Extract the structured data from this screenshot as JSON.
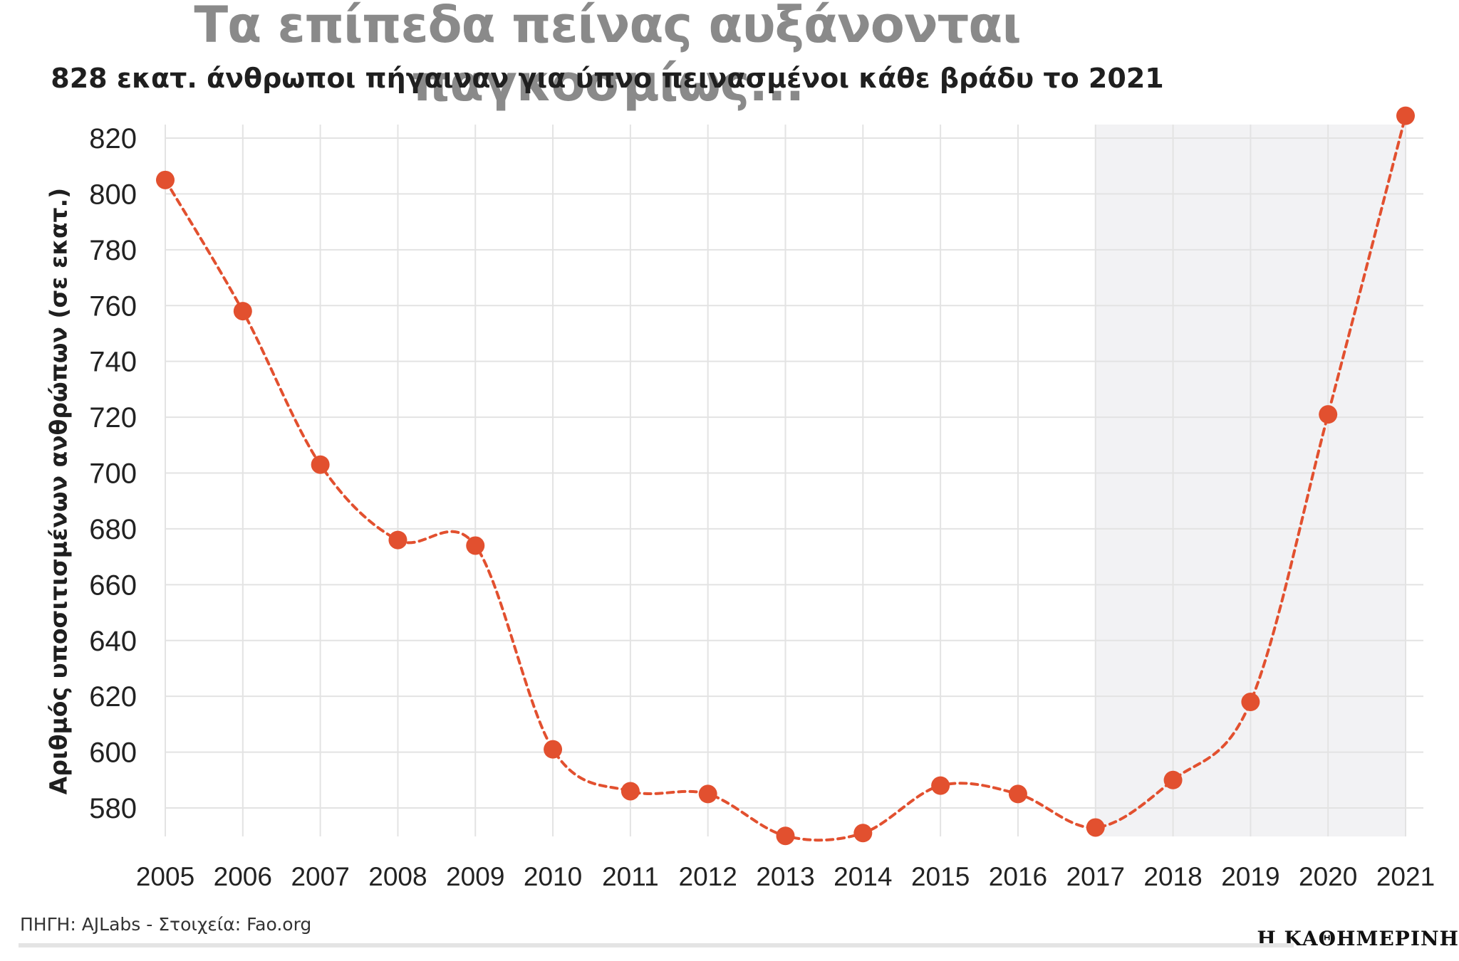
{
  "title": "Τα επίπεδα πείνας αυξάνονται παγκοσμίως...",
  "subtitle": "828 εκατ. άνθρωποι πήγαιναν για ύπνο πεινασμένοι κάθε βράδυ το 2021",
  "footer": {
    "source": "ΠΗΓΗ: AJLabs - Στοιχεία: Fao.org",
    "brand": "Η ΚΑΘΗΜΕΡΙΝΗ"
  },
  "colors": {
    "line": "#e2502f",
    "marker": "#e2502f",
    "grid": "#e3e3e3",
    "highlight": "#f2f2f4",
    "title": "#8a8a8a"
  },
  "chart_data": {
    "type": "line",
    "title": "Τα επίπεδα πείνας αυξάνονται παγκοσμίως...",
    "subtitle": "828 εκατ. άνθρωποι πήγαιναν για ύπνο πεινασμένοι κάθε βράδυ το 2021",
    "xlabel": "",
    "ylabel": "Αριθμός υποσιτισμένων ανθρώπων (σε εκατ.)",
    "x": [
      "2005",
      "2006",
      "2007",
      "2008",
      "2009",
      "2010",
      "2011",
      "2012",
      "2013",
      "2014",
      "2015",
      "2016",
      "2017",
      "2018",
      "2019",
      "2020",
      "2021"
    ],
    "series": [
      {
        "values": [
          805,
          758,
          703,
          676,
          674,
          601,
          586,
          585,
          570,
          571,
          588,
          585,
          573,
          590,
          618,
          721,
          828
        ]
      }
    ],
    "yticks": [
      580,
      600,
      620,
      640,
      660,
      680,
      700,
      720,
      740,
      760,
      780,
      800,
      820
    ],
    "ylim": [
      566,
      828
    ],
    "line_style": "dashed, smoothed",
    "markers": "filled circles",
    "highlight_range": [
      "2017",
      "2021"
    ],
    "grid": true,
    "legend": "none"
  }
}
